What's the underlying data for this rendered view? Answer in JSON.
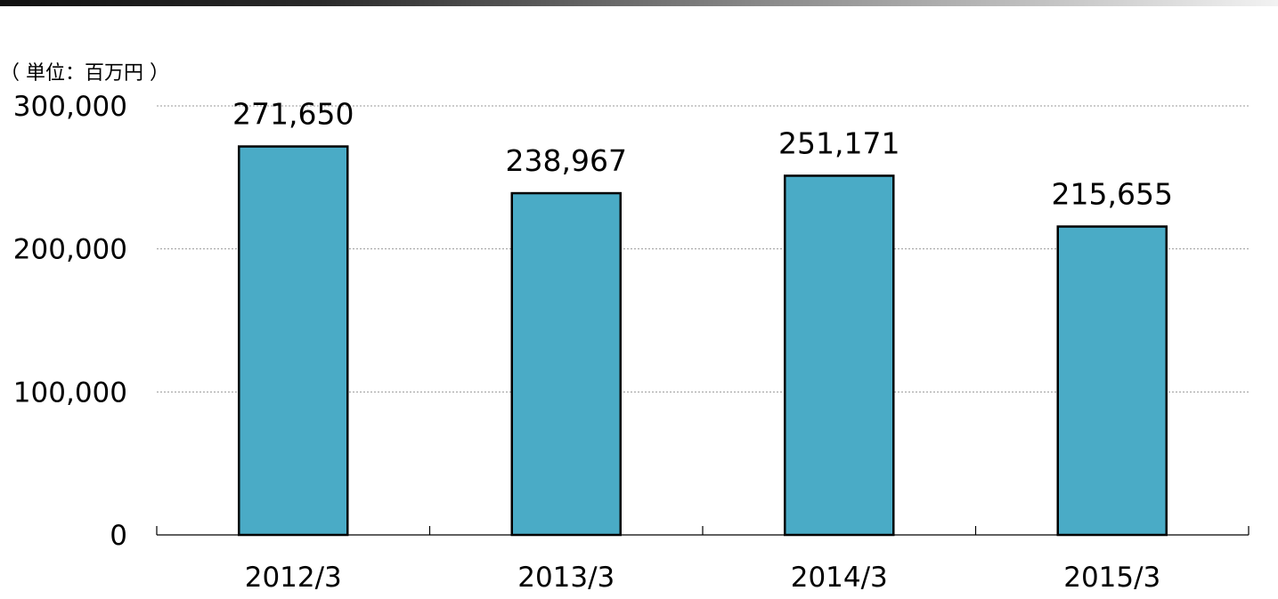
{
  "chart_data": {
    "type": "bar",
    "unit_label": "（ 単位：百万円 ）",
    "categories": [
      "2012/3",
      "2013/3",
      "2014/3",
      "2015/3"
    ],
    "values": [
      271650,
      238967,
      251171,
      215655
    ],
    "value_labels": [
      "271,650",
      "238,967",
      "251,171",
      "215,655"
    ],
    "y_ticks": [
      0,
      100000,
      200000,
      300000
    ],
    "y_tick_labels": [
      "0",
      "100,000",
      "200,000",
      "300,000"
    ],
    "ylim": [
      0,
      300000
    ],
    "grid": true,
    "legend": "none",
    "colors": {
      "bar_fill": "#4aabc6",
      "bar_stroke": "#000000",
      "grid": "#999999",
      "axis": "#000000"
    }
  }
}
